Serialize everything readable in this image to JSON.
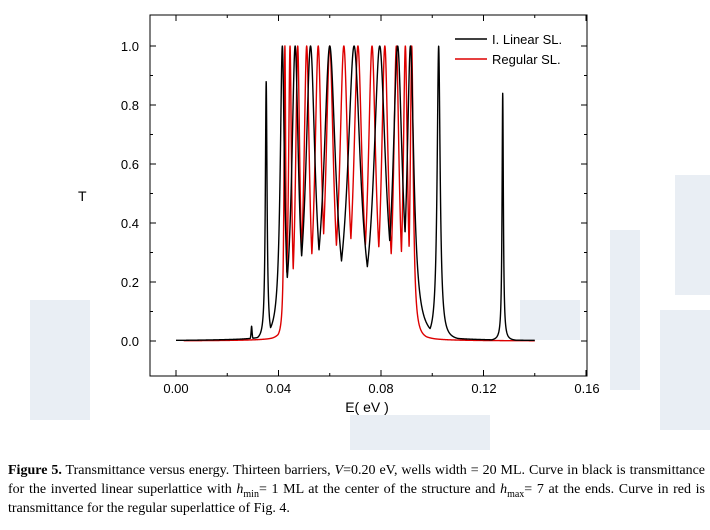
{
  "chart_data": {
    "type": "line",
    "ylabel": "T",
    "xlabel": "E( eV )",
    "xlim": [
      -0.01,
      0.16
    ],
    "ylim": [
      -0.12,
      1.1
    ],
    "xticks": [
      0.0,
      0.04,
      0.08,
      0.12,
      0.16
    ],
    "xtick_labels": [
      "0.00",
      "0.04",
      "0.08",
      "0.12",
      "0.16"
    ],
    "yticks": [
      0.0,
      0.2,
      0.4,
      0.6,
      0.8,
      1.0
    ],
    "ytick_labels": [
      "0.0",
      "0.2",
      "0.4",
      "0.6",
      "0.8",
      "1.0"
    ],
    "legend_position": "top-right",
    "series": [
      {
        "name": "I. Linear SL.",
        "color": "#000000",
        "x_range": [
          0.0,
          0.14
        ],
        "baseline": 0.0,
        "peaks": [
          {
            "x": 0.0295,
            "t": 0.05,
            "w": 0.00025
          },
          {
            "x": 0.0352,
            "t": 0.88,
            "w": 0.0004
          },
          {
            "x": 0.0415,
            "t": 1.0,
            "w": 0.001
          },
          {
            "x": 0.0465,
            "t": 1.0,
            "w": 0.0016
          },
          {
            "x": 0.0525,
            "t": 1.0,
            "w": 0.0022
          },
          {
            "x": 0.06,
            "t": 1.0,
            "w": 0.0028
          },
          {
            "x": 0.0695,
            "t": 1.0,
            "w": 0.003
          },
          {
            "x": 0.0795,
            "t": 1.0,
            "w": 0.0028
          },
          {
            "x": 0.0865,
            "t": 1.0,
            "w": 0.0022
          },
          {
            "x": 0.0915,
            "t": 1.0,
            "w": 0.0016
          },
          {
            "x": 0.1025,
            "t": 1.0,
            "w": 0.0007
          },
          {
            "x": 0.1275,
            "t": 0.84,
            "w": 0.0003
          }
        ]
      },
      {
        "name": "Regular SL.",
        "color": "#dd0000",
        "x_range": [
          0.003,
          0.14
        ],
        "baseline": 0.0,
        "peaks": [
          {
            "x": 0.0425,
            "t": 1.0,
            "w": 0.0004
          },
          {
            "x": 0.0445,
            "t": 1.0,
            "w": 0.0007
          },
          {
            "x": 0.0475,
            "t": 1.0,
            "w": 0.001
          },
          {
            "x": 0.051,
            "t": 1.0,
            "w": 0.0013
          },
          {
            "x": 0.0555,
            "t": 1.0,
            "w": 0.0016
          },
          {
            "x": 0.06,
            "t": 1.0,
            "w": 0.0018
          },
          {
            "x": 0.0655,
            "t": 1.0,
            "w": 0.002
          },
          {
            "x": 0.071,
            "t": 1.0,
            "w": 0.002
          },
          {
            "x": 0.0765,
            "t": 1.0,
            "w": 0.0018
          },
          {
            "x": 0.0815,
            "t": 1.0,
            "w": 0.0016
          },
          {
            "x": 0.086,
            "t": 1.0,
            "w": 0.0013
          },
          {
            "x": 0.0895,
            "t": 1.0,
            "w": 0.001
          },
          {
            "x": 0.092,
            "t": 1.0,
            "w": 0.0007
          }
        ]
      }
    ]
  },
  "caption": {
    "label": "Figure 5.",
    "p1": " Transmittance versus energy. Thirteen barriers, ",
    "v_sym": "V",
    "p2": "=0.20 eV, wells width = 20 ML. Curve in black is transmittance for the inverted linear superlattice with ",
    "h_sym": "h",
    "hmin_sub": "min",
    "p3": "= 1 ML at the center of the structure and ",
    "hmax_sub": "max",
    "p4": "= 7 at the ends. Curve in red is transmittance for the regular superlattice of Fig. 4."
  },
  "colors": {
    "watermark": "#e6ebf2",
    "axis": "#000000"
  }
}
